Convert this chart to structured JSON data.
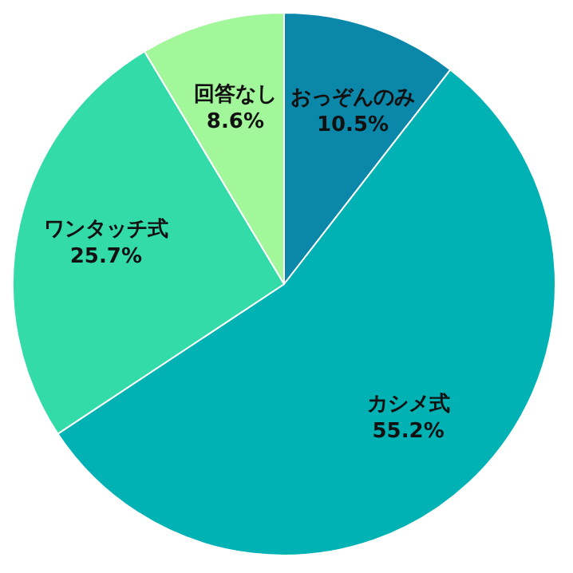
{
  "chart_data": {
    "type": "pie",
    "categories": [
      "おっぞんのみ",
      "カシメ式",
      "ワンタッチ式",
      "回答なし"
    ],
    "values": [
      10.5,
      55.2,
      25.7,
      8.6
    ],
    "value_labels": [
      "10.5%",
      "55.2%",
      "25.7%",
      "8.6%"
    ],
    "colors": [
      "#0b87a9",
      "#00b2b3",
      "#33dba9",
      "#a2f79b"
    ],
    "legend": false
  }
}
